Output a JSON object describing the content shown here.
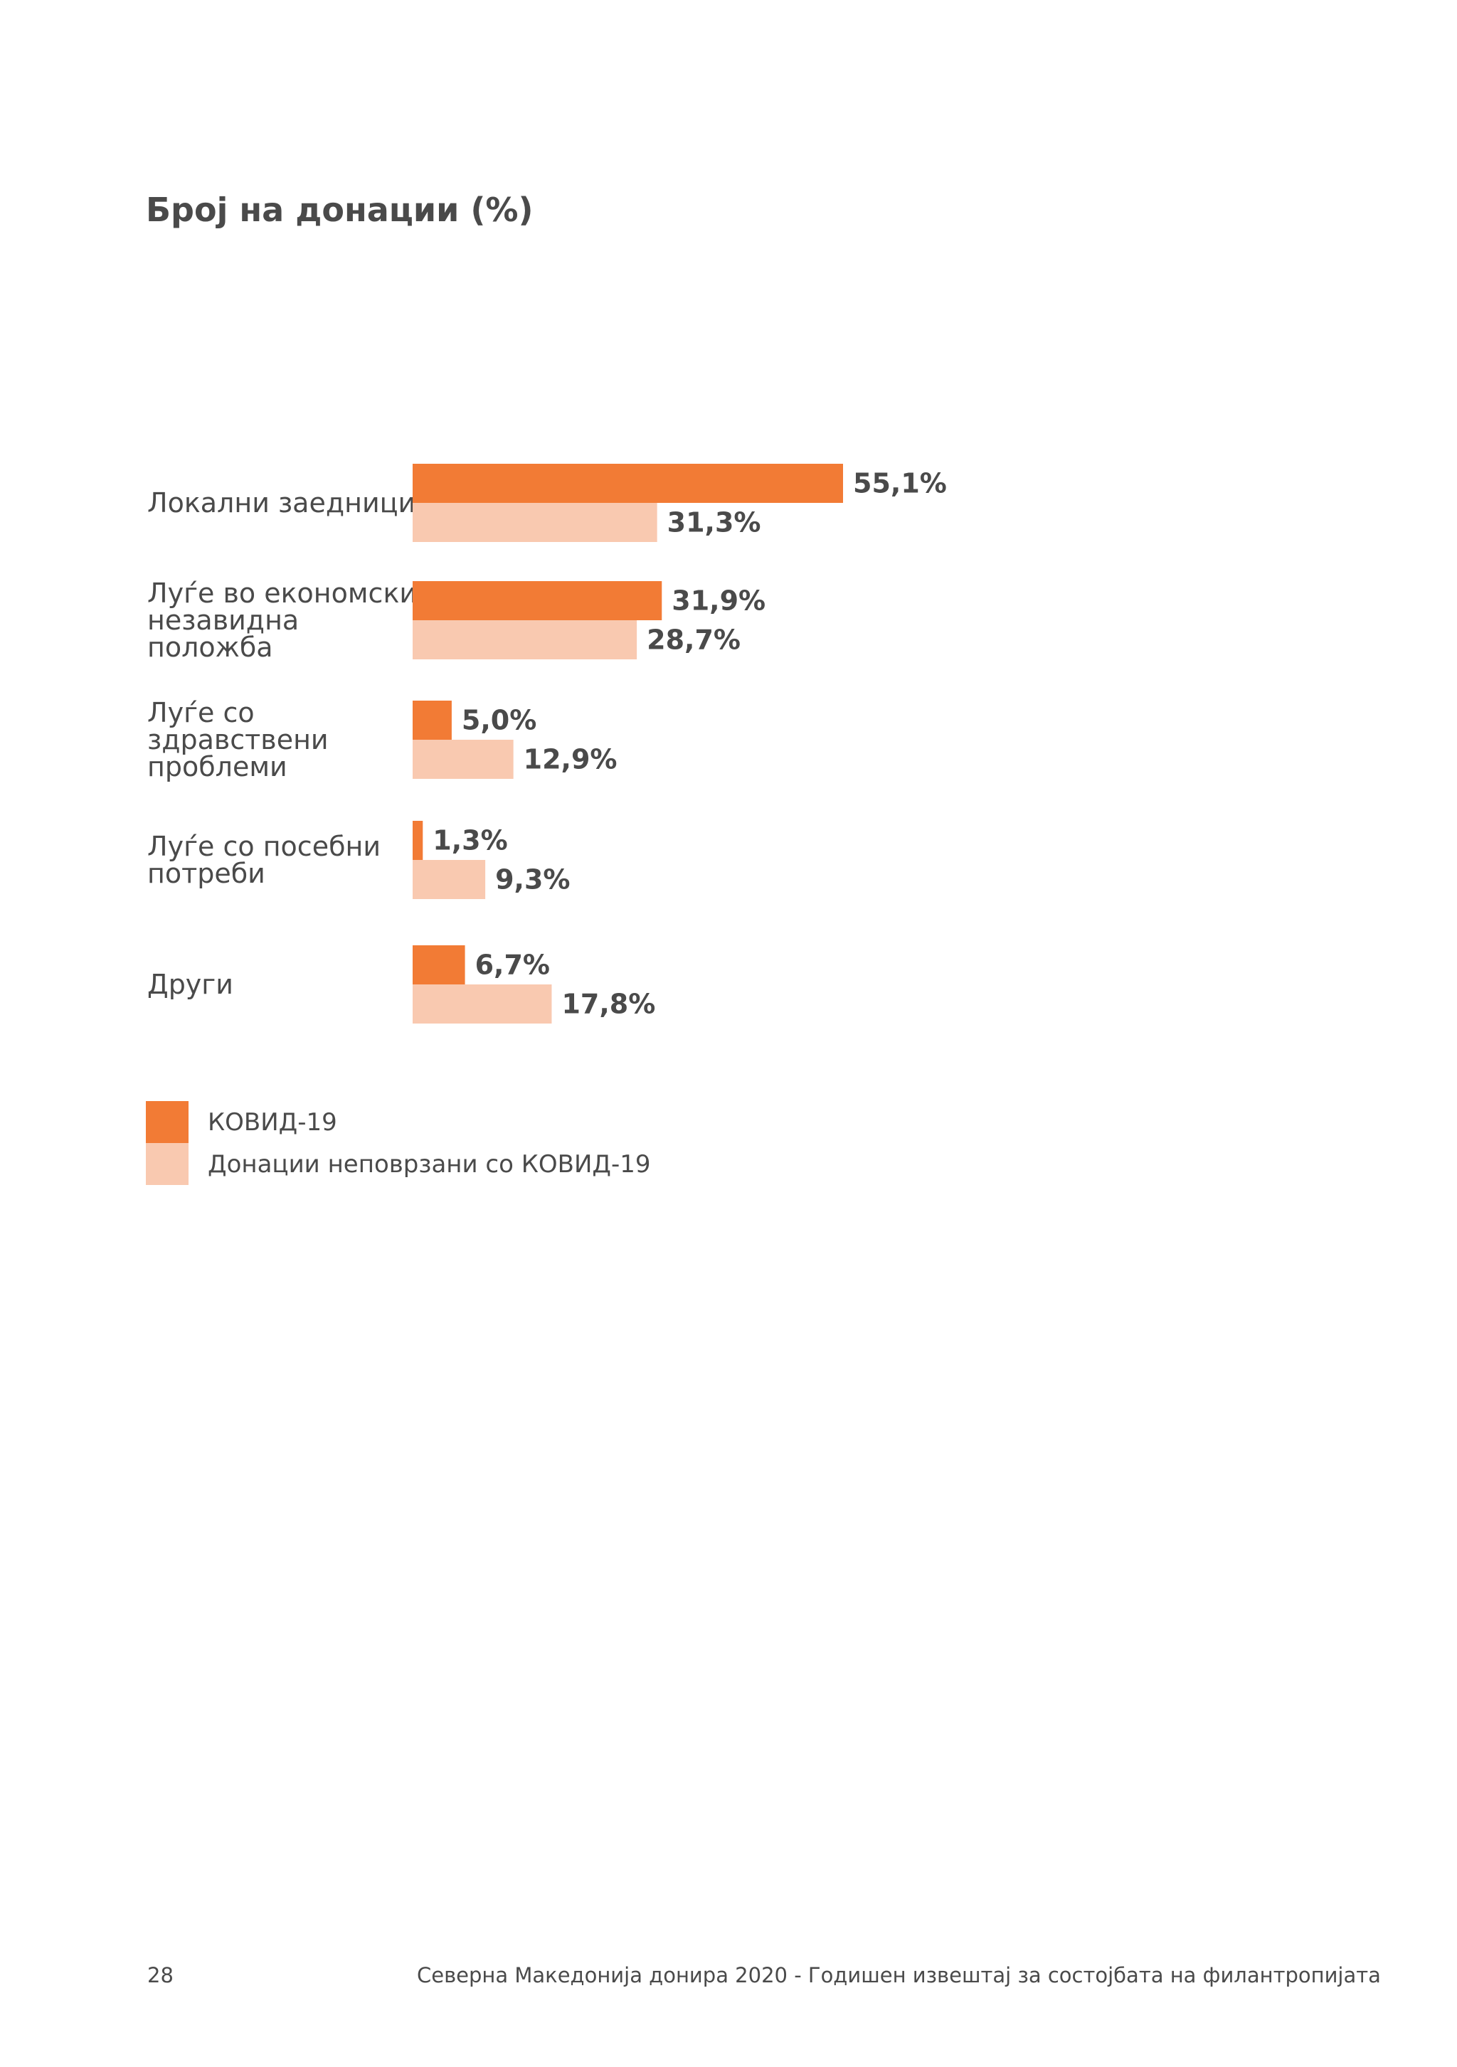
{
  "title": "Број на донации (%)",
  "colors": {
    "covid": "#f27b35",
    "non_covid": "#f9c9b0",
    "text": "#4a4a4a"
  },
  "chart_data": {
    "type": "bar",
    "orientation": "horizontal",
    "categories": [
      [
        "Локални заедници"
      ],
      [
        "Луѓе во економски",
        "незавидна",
        "положба"
      ],
      [
        "Луѓе со",
        "здравствени",
        "проблеми"
      ],
      [
        "Луѓе со посебни",
        "потреби"
      ],
      [
        "Други"
      ]
    ],
    "series": [
      {
        "name": "КОВИД-19",
        "values": [
          55.1,
          31.9,
          5.0,
          1.3,
          6.7
        ],
        "labels": [
          "55,1%",
          "31,9%",
          "5,0%",
          "1,3%",
          "6,7%"
        ]
      },
      {
        "name": "Донации неповрзани со КОВИД-19",
        "values": [
          31.3,
          28.7,
          12.9,
          9.3,
          17.8
        ],
        "labels": [
          "31,3%",
          "28,7%",
          "12,9%",
          "9,3%",
          "17,8%"
        ]
      }
    ],
    "xlim": [
      0,
      100
    ],
    "grid": false,
    "legend_position": "bottom-left"
  },
  "footer": {
    "page_number": "28",
    "text": "Северна Македонија донира 2020 - Годишен извештај за состојбата на филантропијата"
  }
}
